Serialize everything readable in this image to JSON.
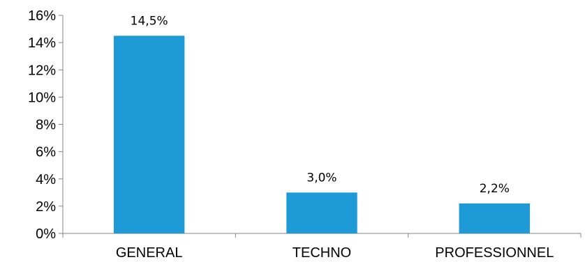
{
  "chart_data": {
    "type": "bar",
    "categories": [
      "GENERAL",
      "TECHNO",
      "PROFESSIONNEL"
    ],
    "values": [
      14.5,
      3.0,
      2.2
    ],
    "data_labels": [
      "14,5%",
      "3,0%",
      "2,2%"
    ],
    "ylim": [
      0,
      16
    ],
    "yticks": [
      0,
      2,
      4,
      6,
      8,
      10,
      12,
      14,
      16
    ],
    "ytick_labels": [
      "0%",
      "2%",
      "4%",
      "6%",
      "8%",
      "10%",
      "12%",
      "14%",
      "16%"
    ],
    "grid": false,
    "legend": "none",
    "bar_color": "#1e9ad6",
    "axis_color": "#868686"
  }
}
